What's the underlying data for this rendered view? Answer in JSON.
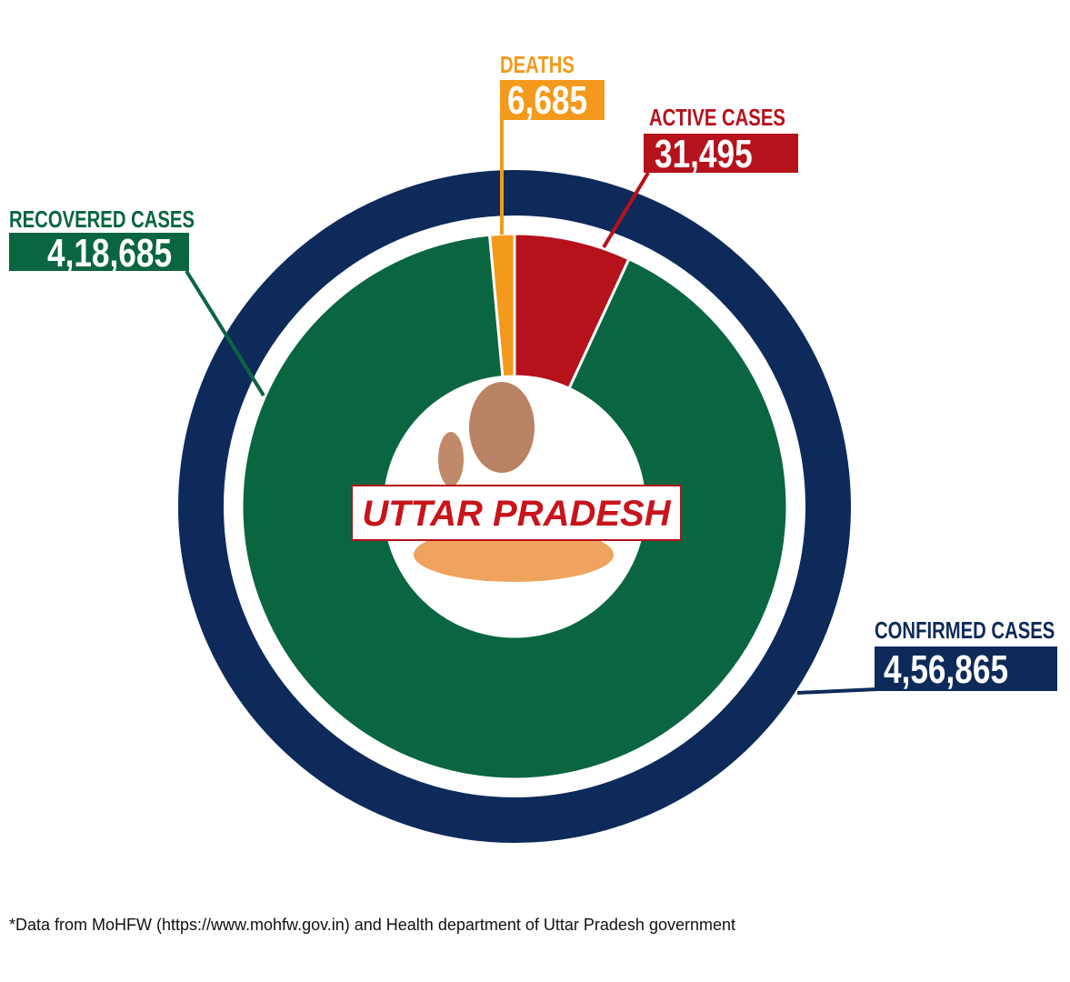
{
  "chart_data": {
    "type": "pie",
    "variant": "donut",
    "title": "UTTAR PRADESH",
    "outer_ring": {
      "name": "CONFIRMED CASES",
      "value": 456865,
      "display": "4,56,865",
      "color": "#0e2a5a"
    },
    "slices": [
      {
        "name": "DEATHS",
        "value": 6685,
        "display": "6,685",
        "color": "#f39a1d"
      },
      {
        "name": "ACTIVE CASES",
        "value": 31495,
        "display": "31,495",
        "color": "#b5121b"
      },
      {
        "name": "RECOVERED CASES",
        "value": 418685,
        "display": "4,18,685",
        "color": "#0a6640"
      }
    ],
    "footnote": "*Data from MoHFW (https://www.mohfw.gov.in) and Health department of Uttar Pradesh government"
  }
}
